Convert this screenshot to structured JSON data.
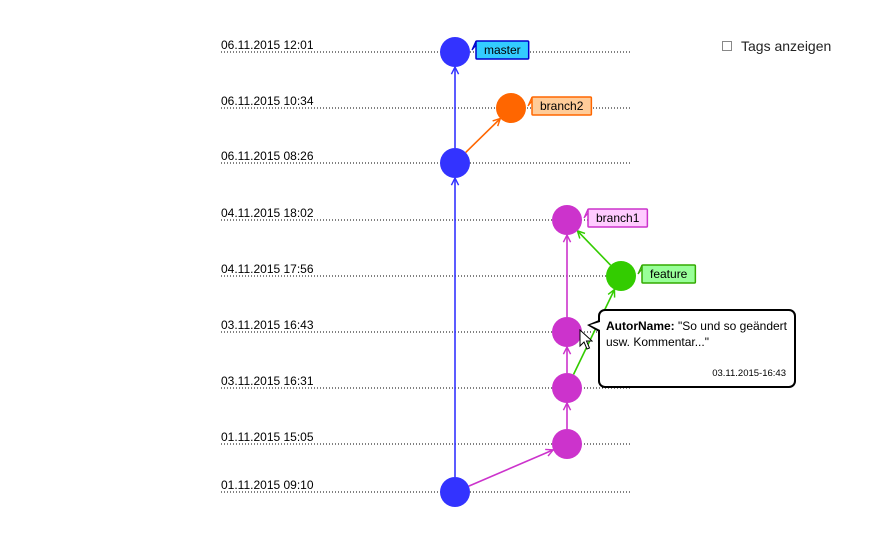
{
  "tags_toggle": {
    "label": "Tags anzeigen",
    "checked": false
  },
  "timeline": [
    "06.11.2015 12:01",
    "06.11.2015 10:34",
    "06.11.2015 08:26",
    "04.11.2015 18:02",
    "04.11.2015 17:56",
    "03.11.2015 16:43",
    "03.11.2015 16:31",
    "01.11.2015 15:05",
    "01.11.2015 09:10"
  ],
  "colors": {
    "master": "#3333ff",
    "branch2": "#ff6600",
    "branch1": "#cc33cc",
    "feature": "#33cc00"
  },
  "commits": [
    {
      "id": "c1",
      "row": 8,
      "lane": "master"
    },
    {
      "id": "c2",
      "row": 7,
      "lane": "branch1"
    },
    {
      "id": "c3",
      "row": 6,
      "lane": "branch1"
    },
    {
      "id": "c4",
      "row": 5,
      "lane": "branch1"
    },
    {
      "id": "c5",
      "row": 4,
      "lane": "feature"
    },
    {
      "id": "c6",
      "row": 3,
      "lane": "branch1"
    },
    {
      "id": "c7",
      "row": 2,
      "lane": "master"
    },
    {
      "id": "c8",
      "row": 1,
      "lane": "branch2"
    },
    {
      "id": "c9",
      "row": 0,
      "lane": "master"
    }
  ],
  "edges": [
    {
      "from": "c1",
      "to": "c7",
      "color": "master"
    },
    {
      "from": "c7",
      "to": "c9",
      "color": "master"
    },
    {
      "from": "c7",
      "to": "c8",
      "color": "branch2"
    },
    {
      "from": "c1",
      "to": "c2",
      "color": "branch1"
    },
    {
      "from": "c2",
      "to": "c3",
      "color": "branch1"
    },
    {
      "from": "c3",
      "to": "c4",
      "color": "branch1"
    },
    {
      "from": "c4",
      "to": "c6",
      "color": "branch1"
    },
    {
      "from": "c3",
      "to": "c5",
      "color": "feature"
    },
    {
      "from": "c5",
      "to": "c6",
      "color": "feature"
    }
  ],
  "branch_labels": [
    {
      "commit": "c9",
      "name": "master",
      "fill": "#33ccff",
      "stroke": "#0000cc"
    },
    {
      "commit": "c8",
      "name": "branch2",
      "fill": "#ffcc99",
      "stroke": "#ff6600"
    },
    {
      "commit": "c6",
      "name": "branch1",
      "fill": "#ffccff",
      "stroke": "#cc33cc"
    },
    {
      "commit": "c5",
      "name": "feature",
      "fill": "#99ff99",
      "stroke": "#33aa00"
    }
  ],
  "tooltip": {
    "author": "AutorName:",
    "message": " \"So und so geändert usw. Kommentar...\"",
    "date": "03.11.2015-16:43"
  }
}
